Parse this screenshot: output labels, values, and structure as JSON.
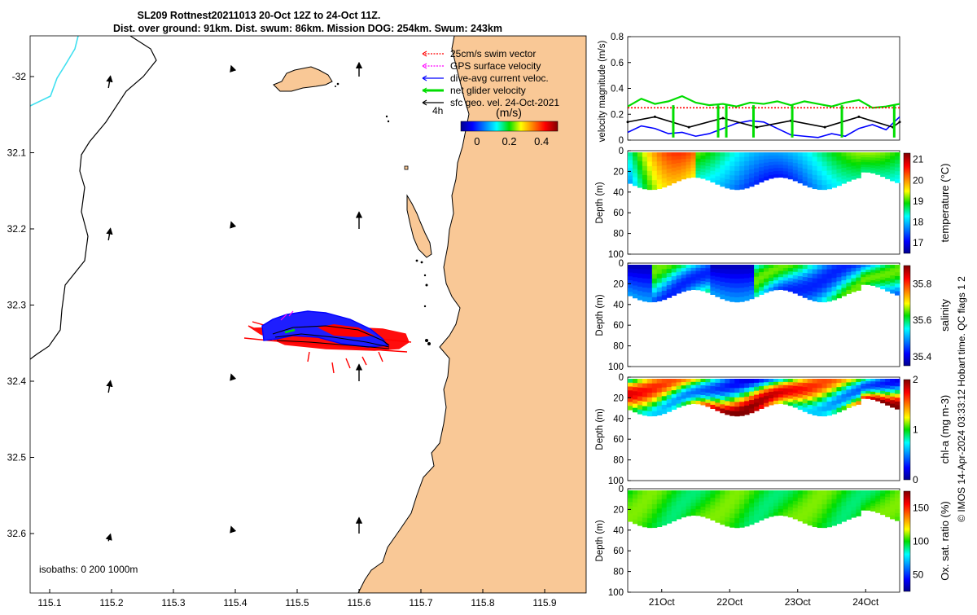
{
  "header": {
    "title_line1": "SL209 Rottnest20211013 20-Oct 12Z to 24-Oct 11Z.",
    "title_line2": "Dist. over ground: 91km. Dist. swum: 86km. Mission DOG: 254km. Swum: 243km"
  },
  "credit": "© IMOS 14-Apr-2024 03:33:12 Hobart time. QC flags 1  2",
  "colors": {
    "land": "#f9c896",
    "coast": "#000000",
    "isobath": "#40e0f0",
    "swim": "#ff0000",
    "gps": "#ff00ff",
    "dive_avg": "#0000ff",
    "net": "#00dd00",
    "sfc_geo": "#000000"
  },
  "map": {
    "legend": [
      {
        "label": "25cm/s swim vector",
        "key": "swim"
      },
      {
        "label": "GPS surface velocity",
        "key": "gps"
      },
      {
        "label": "dive-avg current veloc.",
        "key": "dive_avg"
      },
      {
        "label": "net glider velocity",
        "key": "net"
      },
      {
        "label": "sfc geo. vel. 24-Oct-2021",
        "key": "sfc_geo"
      }
    ],
    "time_tag": "4h",
    "colorbar": {
      "unit": "(m/s)",
      "ticks": [
        "0",
        "0.2",
        "0.4"
      ],
      "range": [
        -0.1,
        0.5
      ]
    },
    "isobaths_label": "isobaths: 0   200  1000m",
    "x_ticks": [
      "115.1",
      "115.2",
      "115.3",
      "115.4",
      "115.5",
      "115.6",
      "115.7",
      "115.8",
      "115.9"
    ],
    "y_ticks": [
      "-32",
      "32.1",
      "32.2",
      "32.3",
      "32.4",
      "32.5",
      "32.6"
    ],
    "sfc_geo_arrows": [
      {
        "lon": 115.195,
        "lat": -32.015,
        "u": 0.02,
        "v": 0.12
      },
      {
        "lon": 115.195,
        "lat": -32.215,
        "u": 0.02,
        "v": 0.12
      },
      {
        "lon": 115.195,
        "lat": -32.415,
        "u": 0.02,
        "v": 0.12
      },
      {
        "lon": 115.195,
        "lat": -32.61,
        "u": 0.02,
        "v": 0.07
      },
      {
        "lon": 115.395,
        "lat": -31.99,
        "u": -0.01,
        "v": 0.03
      },
      {
        "lon": 115.395,
        "lat": -32.195,
        "u": -0.01,
        "v": 0.03
      },
      {
        "lon": 115.395,
        "lat": -32.395,
        "u": -0.01,
        "v": 0.03
      },
      {
        "lon": 115.395,
        "lat": -32.595,
        "u": -0.01,
        "v": 0.03
      },
      {
        "lon": 115.6,
        "lat": -32.0,
        "u": 0.0,
        "v": 0.14
      },
      {
        "lon": 115.6,
        "lat": -32.2,
        "u": 0.0,
        "v": 0.17
      },
      {
        "lon": 115.6,
        "lat": -32.4,
        "u": 0.0,
        "v": 0.17
      },
      {
        "lon": 115.6,
        "lat": -32.6,
        "u": 0.0,
        "v": 0.16
      }
    ]
  },
  "chart_data": [
    {
      "type": "line",
      "title": "",
      "ylabel": "velocity magnitude (m/s)",
      "ylim": [
        0,
        0.8
      ],
      "y_ticks": [
        "0",
        "0.2",
        "0.4",
        "0.6",
        "0.8"
      ],
      "x_ticks": [
        "21Oct",
        "22Oct",
        "23Oct",
        "24Oct"
      ],
      "x_tick_days": [
        21,
        22,
        23,
        24
      ],
      "xlim_days": [
        20.5,
        24.5
      ],
      "series": [
        {
          "name": "net glider velocity",
          "color": "#00dd00",
          "x_days": [
            20.5,
            20.7,
            20.9,
            21.1,
            21.3,
            21.5,
            21.7,
            21.9,
            22.1,
            22.3,
            22.5,
            22.7,
            22.9,
            23.1,
            23.3,
            23.5,
            23.7,
            23.9,
            24.1,
            24.3,
            24.5
          ],
          "values": [
            0.26,
            0.32,
            0.28,
            0.3,
            0.34,
            0.29,
            0.27,
            0.28,
            0.26,
            0.29,
            0.28,
            0.3,
            0.27,
            0.3,
            0.28,
            0.26,
            0.29,
            0.31,
            0.25,
            0.26,
            0.28
          ]
        },
        {
          "name": "dive-avg current veloc.",
          "color": "#0000ff",
          "x_days": [
            20.5,
            20.7,
            20.9,
            21.1,
            21.3,
            21.5,
            21.7,
            21.9,
            22.1,
            22.3,
            22.5,
            22.7,
            22.9,
            23.1,
            23.3,
            23.5,
            23.7,
            23.9,
            24.1,
            24.3,
            24.5
          ],
          "values": [
            0.06,
            0.11,
            0.09,
            0.05,
            0.06,
            0.03,
            0.05,
            0.09,
            0.13,
            0.15,
            0.14,
            0.09,
            0.04,
            0.03,
            0.02,
            0.05,
            0.03,
            0.09,
            0.12,
            0.08,
            0.18
          ]
        },
        {
          "name": "sfc geo. vel. 24-Oct-2021",
          "color": "#000000",
          "x_days": [
            20.5,
            20.9,
            21.4,
            21.9,
            22.4,
            22.9,
            23.4,
            23.9,
            24.4,
            24.5
          ],
          "values": [
            0.14,
            0.18,
            0.1,
            0.17,
            0.1,
            0.15,
            0.1,
            0.18,
            0.1,
            0.14
          ]
        },
        {
          "name": "25cm/s swim vector",
          "color": "#ff0000",
          "x_days": [
            20.5,
            24.5
          ],
          "values": [
            0.25,
            0.25
          ]
        }
      ]
    },
    {
      "type": "heatmap",
      "ylabel": "Depth (m)",
      "cbar_label": "temperature (°C)",
      "cbar_ticks": [
        "17",
        "18",
        "19",
        "20",
        "21"
      ],
      "cbar_range": [
        16.5,
        21.3
      ],
      "ylim": [
        100,
        0
      ],
      "y_ticks": [
        "0",
        "20",
        "40",
        "60",
        "80",
        "100"
      ]
    },
    {
      "type": "heatmap",
      "ylabel": "Depth (m)",
      "cbar_label": "salinity",
      "cbar_ticks": [
        "35.4",
        "35.6",
        "35.8"
      ],
      "cbar_range": [
        35.35,
        35.9
      ],
      "ylim": [
        100,
        0
      ],
      "y_ticks": [
        "0",
        "20",
        "40",
        "60",
        "80",
        "100"
      ]
    },
    {
      "type": "heatmap",
      "ylabel": "Depth (m)",
      "cbar_label": "chl-a (mg m-3)",
      "cbar_ticks": [
        "0",
        "1",
        "2"
      ],
      "cbar_range": [
        0,
        2
      ],
      "ylim": [
        100,
        0
      ],
      "y_ticks": [
        "0",
        "20",
        "40",
        "60",
        "80",
        "100"
      ]
    },
    {
      "type": "heatmap",
      "ylabel": "Depth (m)",
      "cbar_label": "Ox. sat. ratio (%)",
      "cbar_ticks": [
        "50",
        "100",
        "150"
      ],
      "cbar_range": [
        25,
        175
      ],
      "ylim": [
        100,
        0
      ],
      "y_ticks": [
        "0",
        "20",
        "40",
        "60",
        "80",
        "100"
      ]
    }
  ]
}
